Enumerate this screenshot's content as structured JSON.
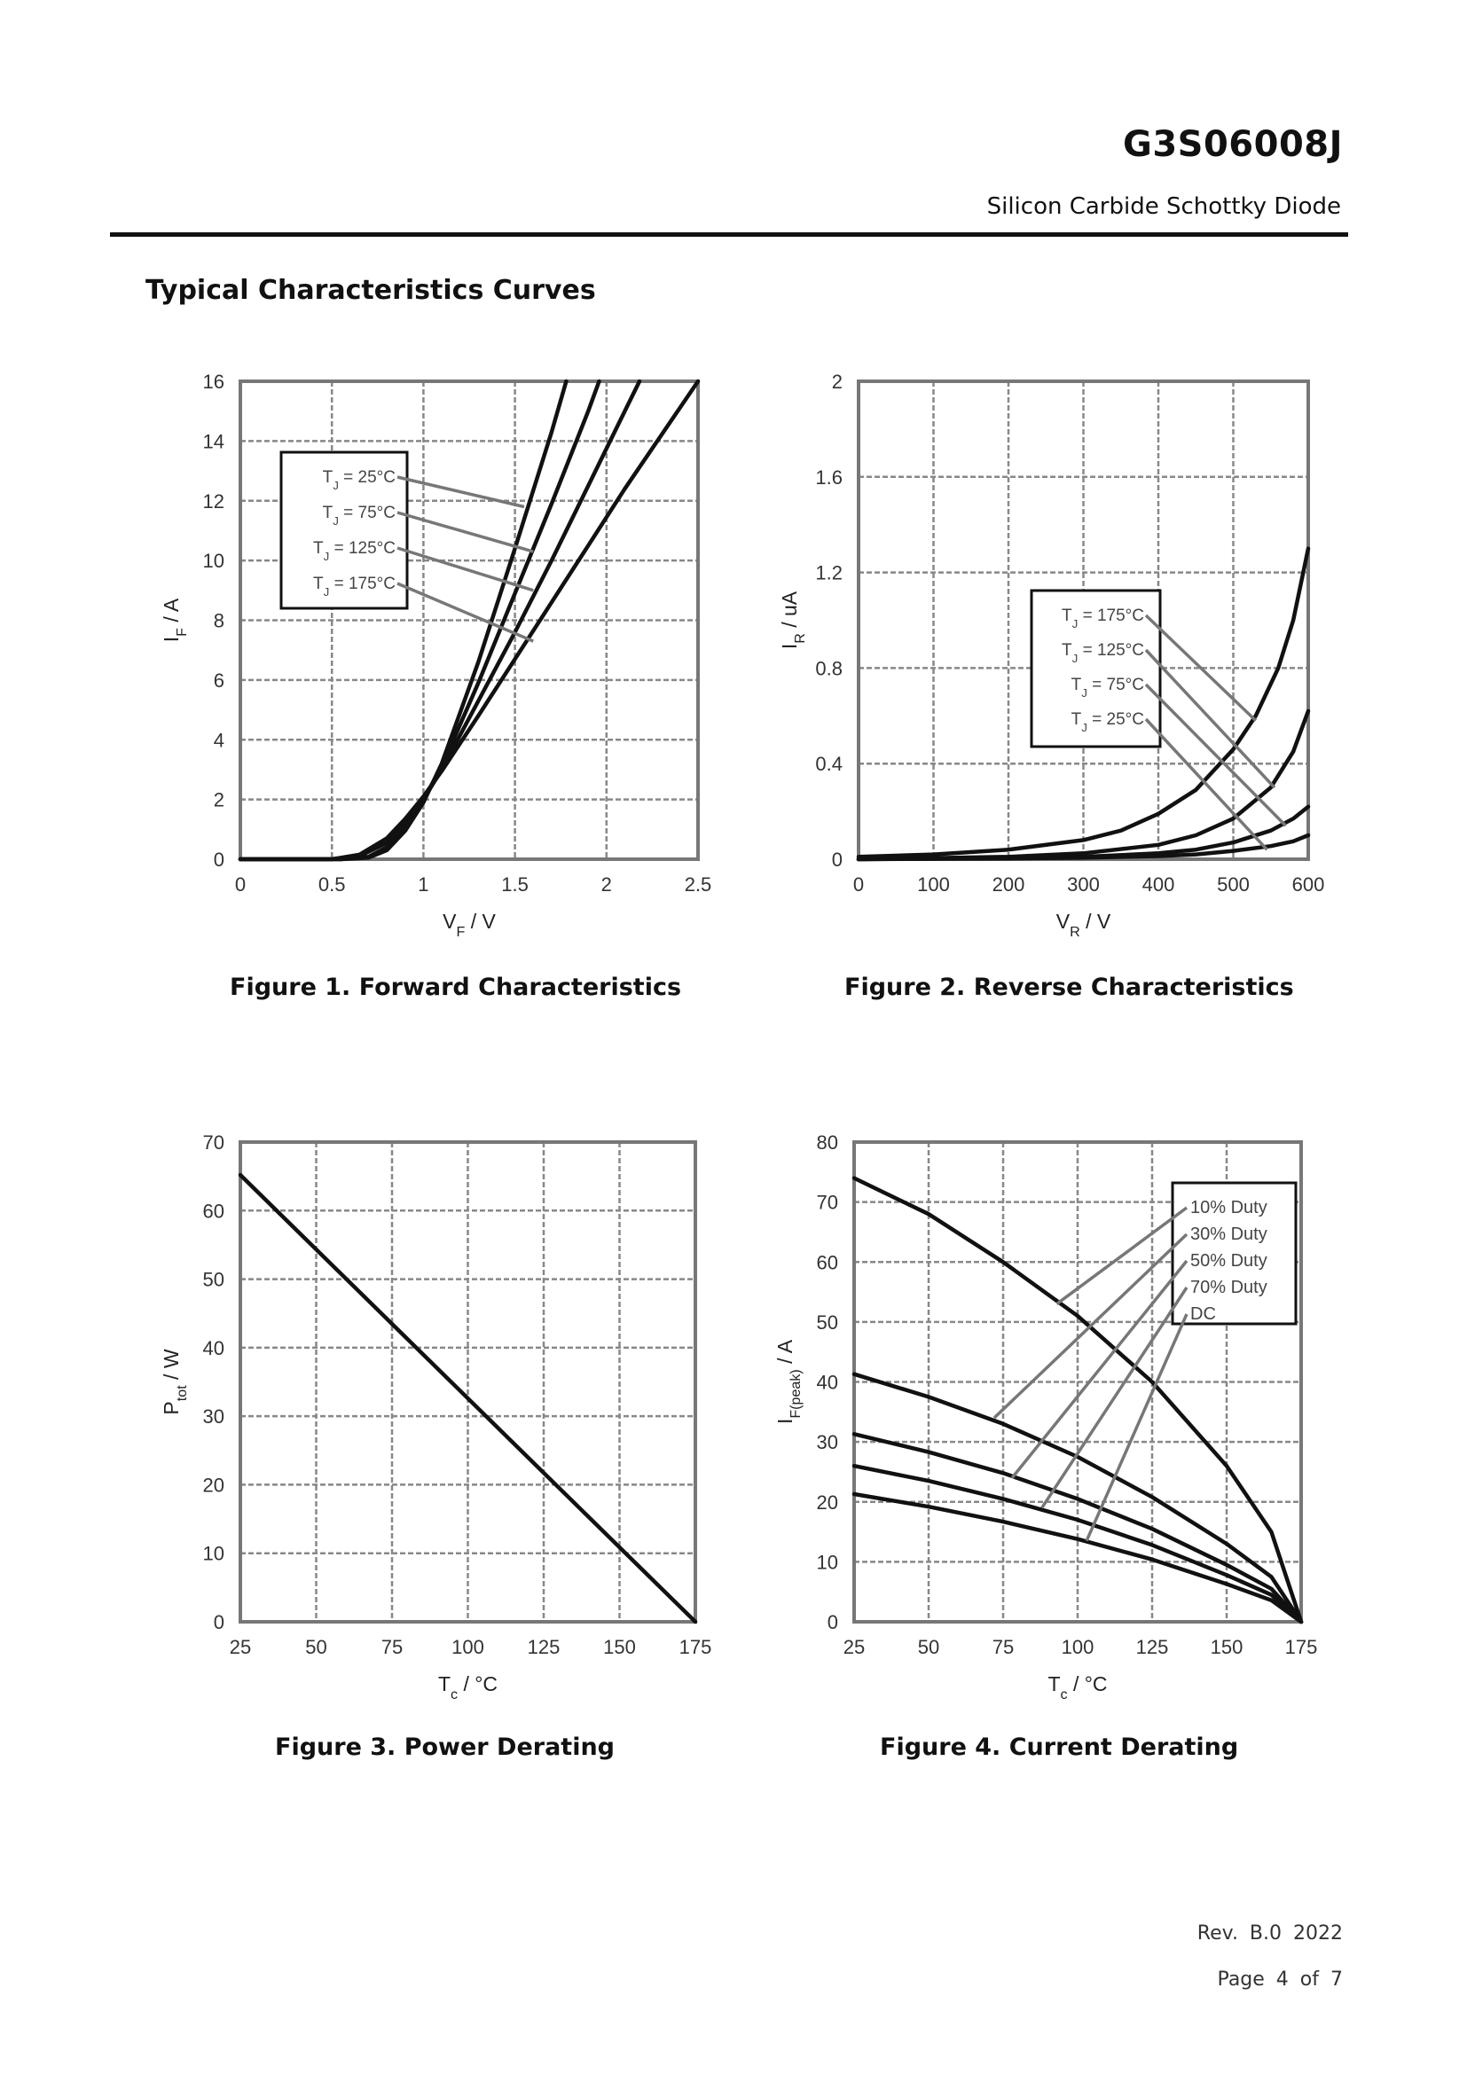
{
  "header": {
    "part_number": "G3S06008J",
    "subtitle": "Silicon Carbide Schottky Diode",
    "section_title": "Typical Characteristics Curves"
  },
  "footer": {
    "revision": "Rev. B.0   2022",
    "page": "Page  4  of  7"
  },
  "chart_data": [
    {
      "type": "line",
      "caption": "Figure 1. Forward Characteristics",
      "xlabel": "VF / V",
      "xlabel_main": "V",
      "xlabel_sub": "F",
      "xlabel_rest": " / V",
      "ylabel": "IF / A",
      "ylabel_main": "I",
      "ylabel_sub": "F",
      "ylabel_rest": " / A",
      "xlim": [
        0,
        2.5
      ],
      "ylim": [
        0,
        16
      ],
      "xticks": [
        0,
        0.5,
        1,
        1.5,
        2,
        2.5
      ],
      "xtick_labels": [
        "0",
        "0.5",
        "1",
        "1.5",
        "2",
        "2.5"
      ],
      "yticks": [
        0,
        2,
        4,
        6,
        8,
        10,
        12,
        14,
        16
      ],
      "ytick_labels": [
        "0",
        "2",
        "4",
        "6",
        "8",
        "10",
        "12",
        "14",
        "16"
      ],
      "grid": true,
      "legend": "top-left",
      "series": [
        {
          "name": "TJ = 25°C",
          "legend_main": "T",
          "legend_sub": "J",
          "legend_rest": " = 25°C",
          "x": [
            0,
            0.55,
            0.7,
            0.8,
            0.9,
            1.0,
            1.1,
            1.3,
            1.5,
            1.7,
            1.78
          ],
          "y": [
            0,
            0,
            0.05,
            0.3,
            0.95,
            1.9,
            3.2,
            6.6,
            10.4,
            14.3,
            16
          ],
          "leader": [
            1.55,
            11.8
          ]
        },
        {
          "name": "TJ = 75°C",
          "legend_main": "T",
          "legend_sub": "J",
          "legend_rest": " = 75°C",
          "x": [
            0,
            0.55,
            0.7,
            0.8,
            0.9,
            1.0,
            1.1,
            1.3,
            1.5,
            1.7,
            1.9,
            1.96
          ],
          "y": [
            0,
            0,
            0.08,
            0.4,
            1.1,
            2.0,
            3.1,
            5.9,
            8.9,
            11.9,
            15.0,
            16
          ],
          "leader": [
            1.6,
            10.3
          ]
        },
        {
          "name": "TJ = 125°C",
          "legend_main": "T",
          "legend_sub": "J",
          "legend_rest": " = 125°C",
          "x": [
            0,
            0.5,
            0.65,
            0.8,
            0.9,
            1.0,
            1.1,
            1.3,
            1.5,
            1.7,
            1.9,
            2.1,
            2.18
          ],
          "y": [
            0,
            0,
            0.1,
            0.55,
            1.2,
            2.0,
            3.0,
            5.3,
            7.6,
            10.0,
            12.5,
            15.0,
            16
          ],
          "leader": [
            1.6,
            9.0
          ]
        },
        {
          "name": "TJ = 175°C",
          "legend_main": "T",
          "legend_sub": "J",
          "legend_rest": " = 175°C",
          "x": [
            0,
            0.5,
            0.65,
            0.8,
            0.9,
            1.0,
            1.1,
            1.3,
            1.5,
            1.7,
            1.9,
            2.1,
            2.3,
            2.5
          ],
          "y": [
            0,
            0,
            0.15,
            0.7,
            1.35,
            2.1,
            2.95,
            4.8,
            6.7,
            8.6,
            10.5,
            12.4,
            14.2,
            16
          ],
          "leader": [
            1.6,
            7.3
          ]
        }
      ]
    },
    {
      "type": "line",
      "caption": "Figure 2. Reverse Characteristics",
      "xlabel": "VR / V",
      "xlabel_main": "V",
      "xlabel_sub": "R",
      "xlabel_rest": " / V",
      "ylabel": "IR / uA",
      "ylabel_main": "I",
      "ylabel_sub": "R",
      "ylabel_rest": " / uA",
      "xlim": [
        0,
        600
      ],
      "ylim": [
        0,
        2
      ],
      "xticks": [
        0,
        100,
        200,
        300,
        400,
        500,
        600
      ],
      "xtick_labels": [
        "0",
        "100",
        "200",
        "300",
        "400",
        "500",
        "600"
      ],
      "yticks": [
        0,
        0.4,
        0.8,
        1.2,
        1.6,
        2
      ],
      "ytick_labels": [
        "0",
        "0.4",
        "0.8",
        "1.2",
        "1.6",
        "2"
      ],
      "grid": true,
      "legend": "center-right",
      "series": [
        {
          "name": "TJ = 175°C",
          "legend_main": "T",
          "legend_sub": "J",
          "legend_rest": " = 175°C",
          "x": [
            0,
            100,
            200,
            300,
            350,
            400,
            450,
            500,
            530,
            560,
            580,
            600
          ],
          "y": [
            0.01,
            0.02,
            0.04,
            0.08,
            0.12,
            0.19,
            0.29,
            0.46,
            0.6,
            0.8,
            1.0,
            1.3
          ],
          "leader": [
            530,
            0.58
          ]
        },
        {
          "name": "TJ = 125°C",
          "legend_main": "T",
          "legend_sub": "J",
          "legend_rest": " = 125°C",
          "x": [
            0,
            200,
            300,
            400,
            450,
            500,
            550,
            580,
            600
          ],
          "y": [
            0.0,
            0.01,
            0.025,
            0.06,
            0.1,
            0.17,
            0.3,
            0.45,
            0.62
          ],
          "leader": [
            555,
            0.3
          ]
        },
        {
          "name": "TJ = 75°C",
          "legend_main": "T",
          "legend_sub": "J",
          "legend_rest": " = 75°C",
          "x": [
            0,
            200,
            300,
            400,
            450,
            500,
            550,
            580,
            600
          ],
          "y": [
            0.0,
            0.005,
            0.01,
            0.025,
            0.04,
            0.07,
            0.12,
            0.17,
            0.22
          ],
          "leader": [
            570,
            0.14
          ]
        },
        {
          "name": "TJ = 25°C",
          "legend_main": "T",
          "legend_sub": "J",
          "legend_rest": " = 25°C",
          "x": [
            0,
            200,
            300,
            400,
            450,
            500,
            550,
            580,
            600
          ],
          "y": [
            0.0,
            0.003,
            0.006,
            0.013,
            0.02,
            0.035,
            0.055,
            0.075,
            0.1
          ],
          "leader": [
            545,
            0.04
          ]
        }
      ]
    },
    {
      "type": "line",
      "caption": "Figure 3. Power Derating",
      "xlabel": "Tc / °C",
      "xlabel_main": "T",
      "xlabel_sub": "c",
      "xlabel_rest": " / °C",
      "ylabel": "Ptot / W",
      "ylabel_main": "P",
      "ylabel_sub": "tot",
      "ylabel_rest": " / W",
      "xlim": [
        25,
        175
      ],
      "ylim": [
        0,
        70
      ],
      "xticks": [
        25,
        50,
        75,
        100,
        125,
        150,
        175
      ],
      "xtick_labels": [
        "25",
        "50",
        "75",
        "100",
        "125",
        "150",
        "175"
      ],
      "yticks": [
        0,
        10,
        20,
        30,
        40,
        50,
        60,
        70
      ],
      "ytick_labels": [
        "0",
        "10",
        "20",
        "30",
        "40",
        "50",
        "60",
        "70"
      ],
      "grid": true,
      "series": [
        {
          "name": "Ptot",
          "x": [
            25,
            175
          ],
          "y": [
            65.2,
            0
          ]
        }
      ]
    },
    {
      "type": "line",
      "caption": "Figure 4. Current Derating",
      "xlabel": "Tc / °C",
      "xlabel_main": "T",
      "xlabel_sub": "c",
      "xlabel_rest": " / °C",
      "ylabel": "IF(peak) / A",
      "ylabel_main": "I",
      "ylabel_sub": "F(peak)",
      "ylabel_rest": " / A",
      "xlim": [
        25,
        175
      ],
      "ylim": [
        0,
        80
      ],
      "xticks": [
        25,
        50,
        75,
        100,
        125,
        150,
        175
      ],
      "xtick_labels": [
        "25",
        "50",
        "75",
        "100",
        "125",
        "150",
        "175"
      ],
      "yticks": [
        0,
        10,
        20,
        30,
        40,
        50,
        60,
        70,
        80
      ],
      "ytick_labels": [
        "0",
        "10",
        "20",
        "30",
        "40",
        "50",
        "60",
        "70",
        "80"
      ],
      "grid": true,
      "legend": "top-right",
      "series": [
        {
          "name": "10% Duty",
          "x": [
            25,
            50,
            75,
            100,
            125,
            150,
            165,
            175
          ],
          "y": [
            74,
            68,
            60,
            51,
            40,
            26,
            15,
            0
          ],
          "leader": [
            93,
            53
          ]
        },
        {
          "name": "30% Duty",
          "x": [
            25,
            50,
            75,
            100,
            125,
            150,
            165,
            175
          ],
          "y": [
            41.3,
            37.5,
            33,
            27.5,
            20.8,
            13,
            7.5,
            0
          ],
          "leader": [
            72,
            34
          ]
        },
        {
          "name": "50% Duty",
          "x": [
            25,
            50,
            75,
            100,
            125,
            150,
            165,
            175
          ],
          "y": [
            31.3,
            28.3,
            24.8,
            20.5,
            15.5,
            9.5,
            5.5,
            0
          ],
          "leader": [
            78,
            24
          ]
        },
        {
          "name": "70% Duty",
          "x": [
            25,
            50,
            75,
            100,
            125,
            150,
            165,
            175
          ],
          "y": [
            26,
            23.5,
            20.5,
            17,
            12.8,
            7.8,
            4.5,
            0
          ],
          "leader": [
            88,
            19
          ]
        },
        {
          "name": "DC",
          "x": [
            25,
            50,
            75,
            100,
            125,
            150,
            165,
            175
          ],
          "y": [
            21.3,
            19.2,
            16.7,
            13.8,
            10.4,
            6.3,
            3.6,
            0
          ],
          "leader": [
            103,
            13.5
          ]
        }
      ]
    }
  ]
}
